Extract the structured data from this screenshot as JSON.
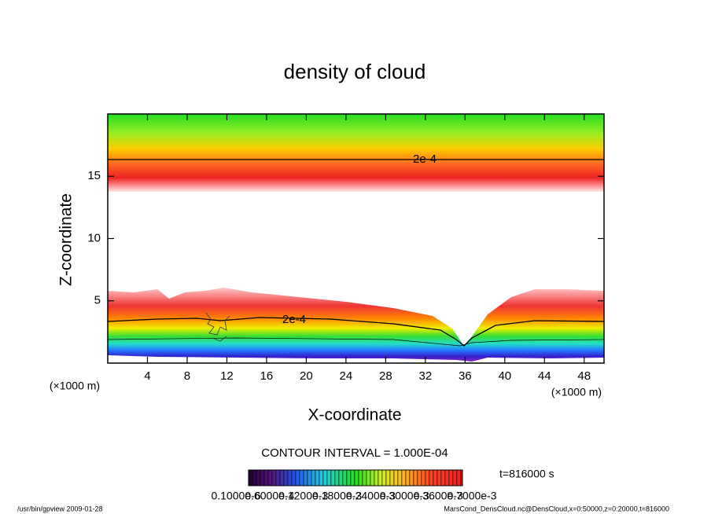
{
  "chart_data": {
    "type": "contour",
    "title": "density of cloud",
    "x_label": "X-coordinate",
    "y_label": "Z-coordinate",
    "x_unit": "(×1000 m)",
    "y_unit": "(×1000 m)",
    "xlim": [
      0,
      50
    ],
    "ylim": [
      0,
      20
    ],
    "xticks": [
      4,
      8,
      12,
      16,
      20,
      24,
      28,
      32,
      36,
      40,
      44,
      48
    ],
    "yticks": [
      5,
      10,
      15
    ],
    "contour_labels": [
      "2e-4",
      "2e-4"
    ],
    "contour_interval": "CONTOUR INTERVAL = 1.000E-04",
    "time": "t=816000 s",
    "colorbar_labels": [
      "0.1000e-6",
      "0.6000e-4",
      "0.1200e-3",
      "0.1800e-3",
      "0.2400e-3",
      "0.3000e-3",
      "0.3600e-3",
      "0.7000e-3"
    ],
    "footer_left": "/usr/bin/gpview  2009-01-28",
    "footer_right": "MarsCond_DensCloud.nc@DensCloud,x=0:50000,z=0:20000,t=816000"
  }
}
